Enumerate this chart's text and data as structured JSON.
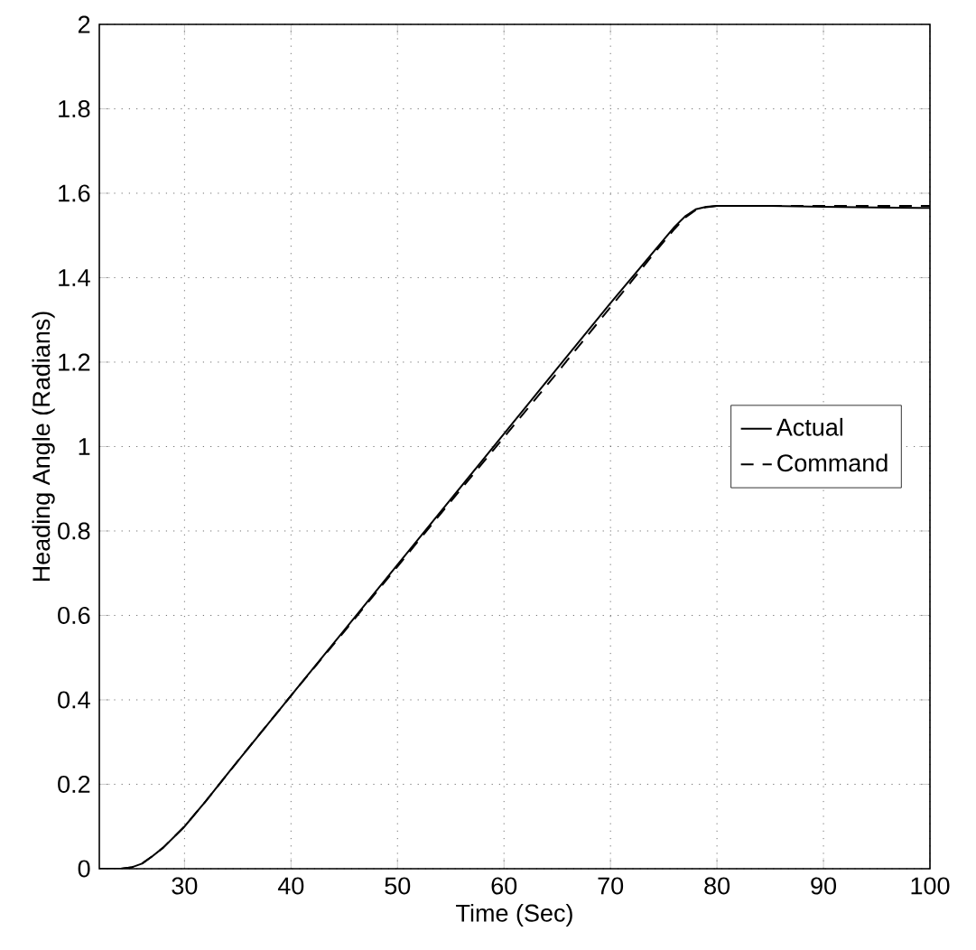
{
  "chart_data": {
    "type": "line",
    "xlabel": "Time (Sec)",
    "ylabel": "Heading Angle (Radians)",
    "xlim": [
      22,
      100
    ],
    "ylim": [
      0,
      2
    ],
    "xticks": [
      30,
      40,
      50,
      60,
      70,
      80,
      90,
      100
    ],
    "yticks": [
      0,
      0.2,
      0.4,
      0.6,
      0.8,
      1,
      1.2,
      1.4,
      1.6,
      1.8,
      2
    ],
    "grid": true,
    "legend": "right",
    "series": [
      {
        "name": "Actual",
        "color": "#000000",
        "line_style": "solid",
        "x": [
          22,
          24,
          25,
          26,
          27,
          28,
          29,
          30,
          32,
          35,
          40,
          45,
          50,
          55,
          60,
          65,
          70,
          72,
          74,
          76,
          77,
          78,
          79,
          80,
          85,
          90,
          95,
          100
        ],
        "values": [
          0,
          0,
          0.003,
          0.012,
          0.03,
          0.05,
          0.075,
          0.1,
          0.16,
          0.255,
          0.41,
          0.565,
          0.72,
          0.875,
          1.03,
          1.185,
          1.34,
          1.4,
          1.46,
          1.52,
          1.545,
          1.562,
          1.568,
          1.57,
          1.57,
          1.568,
          1.566,
          1.565
        ]
      },
      {
        "name": "Command",
        "color": "#000000",
        "line_style": "dashed",
        "x": [
          22,
          24,
          25,
          26,
          27,
          28,
          29,
          30,
          32,
          35,
          40,
          45,
          50,
          55,
          60,
          65,
          70,
          72,
          74,
          76,
          77,
          78,
          79,
          80,
          85,
          90,
          95,
          100
        ],
        "values": [
          0,
          0,
          0.003,
          0.012,
          0.03,
          0.05,
          0.075,
          0.1,
          0.16,
          0.255,
          0.41,
          0.562,
          0.716,
          0.87,
          1.022,
          1.175,
          1.33,
          1.392,
          1.455,
          1.515,
          1.542,
          1.56,
          1.567,
          1.57,
          1.57,
          1.57,
          1.57,
          1.57
        ]
      }
    ]
  }
}
